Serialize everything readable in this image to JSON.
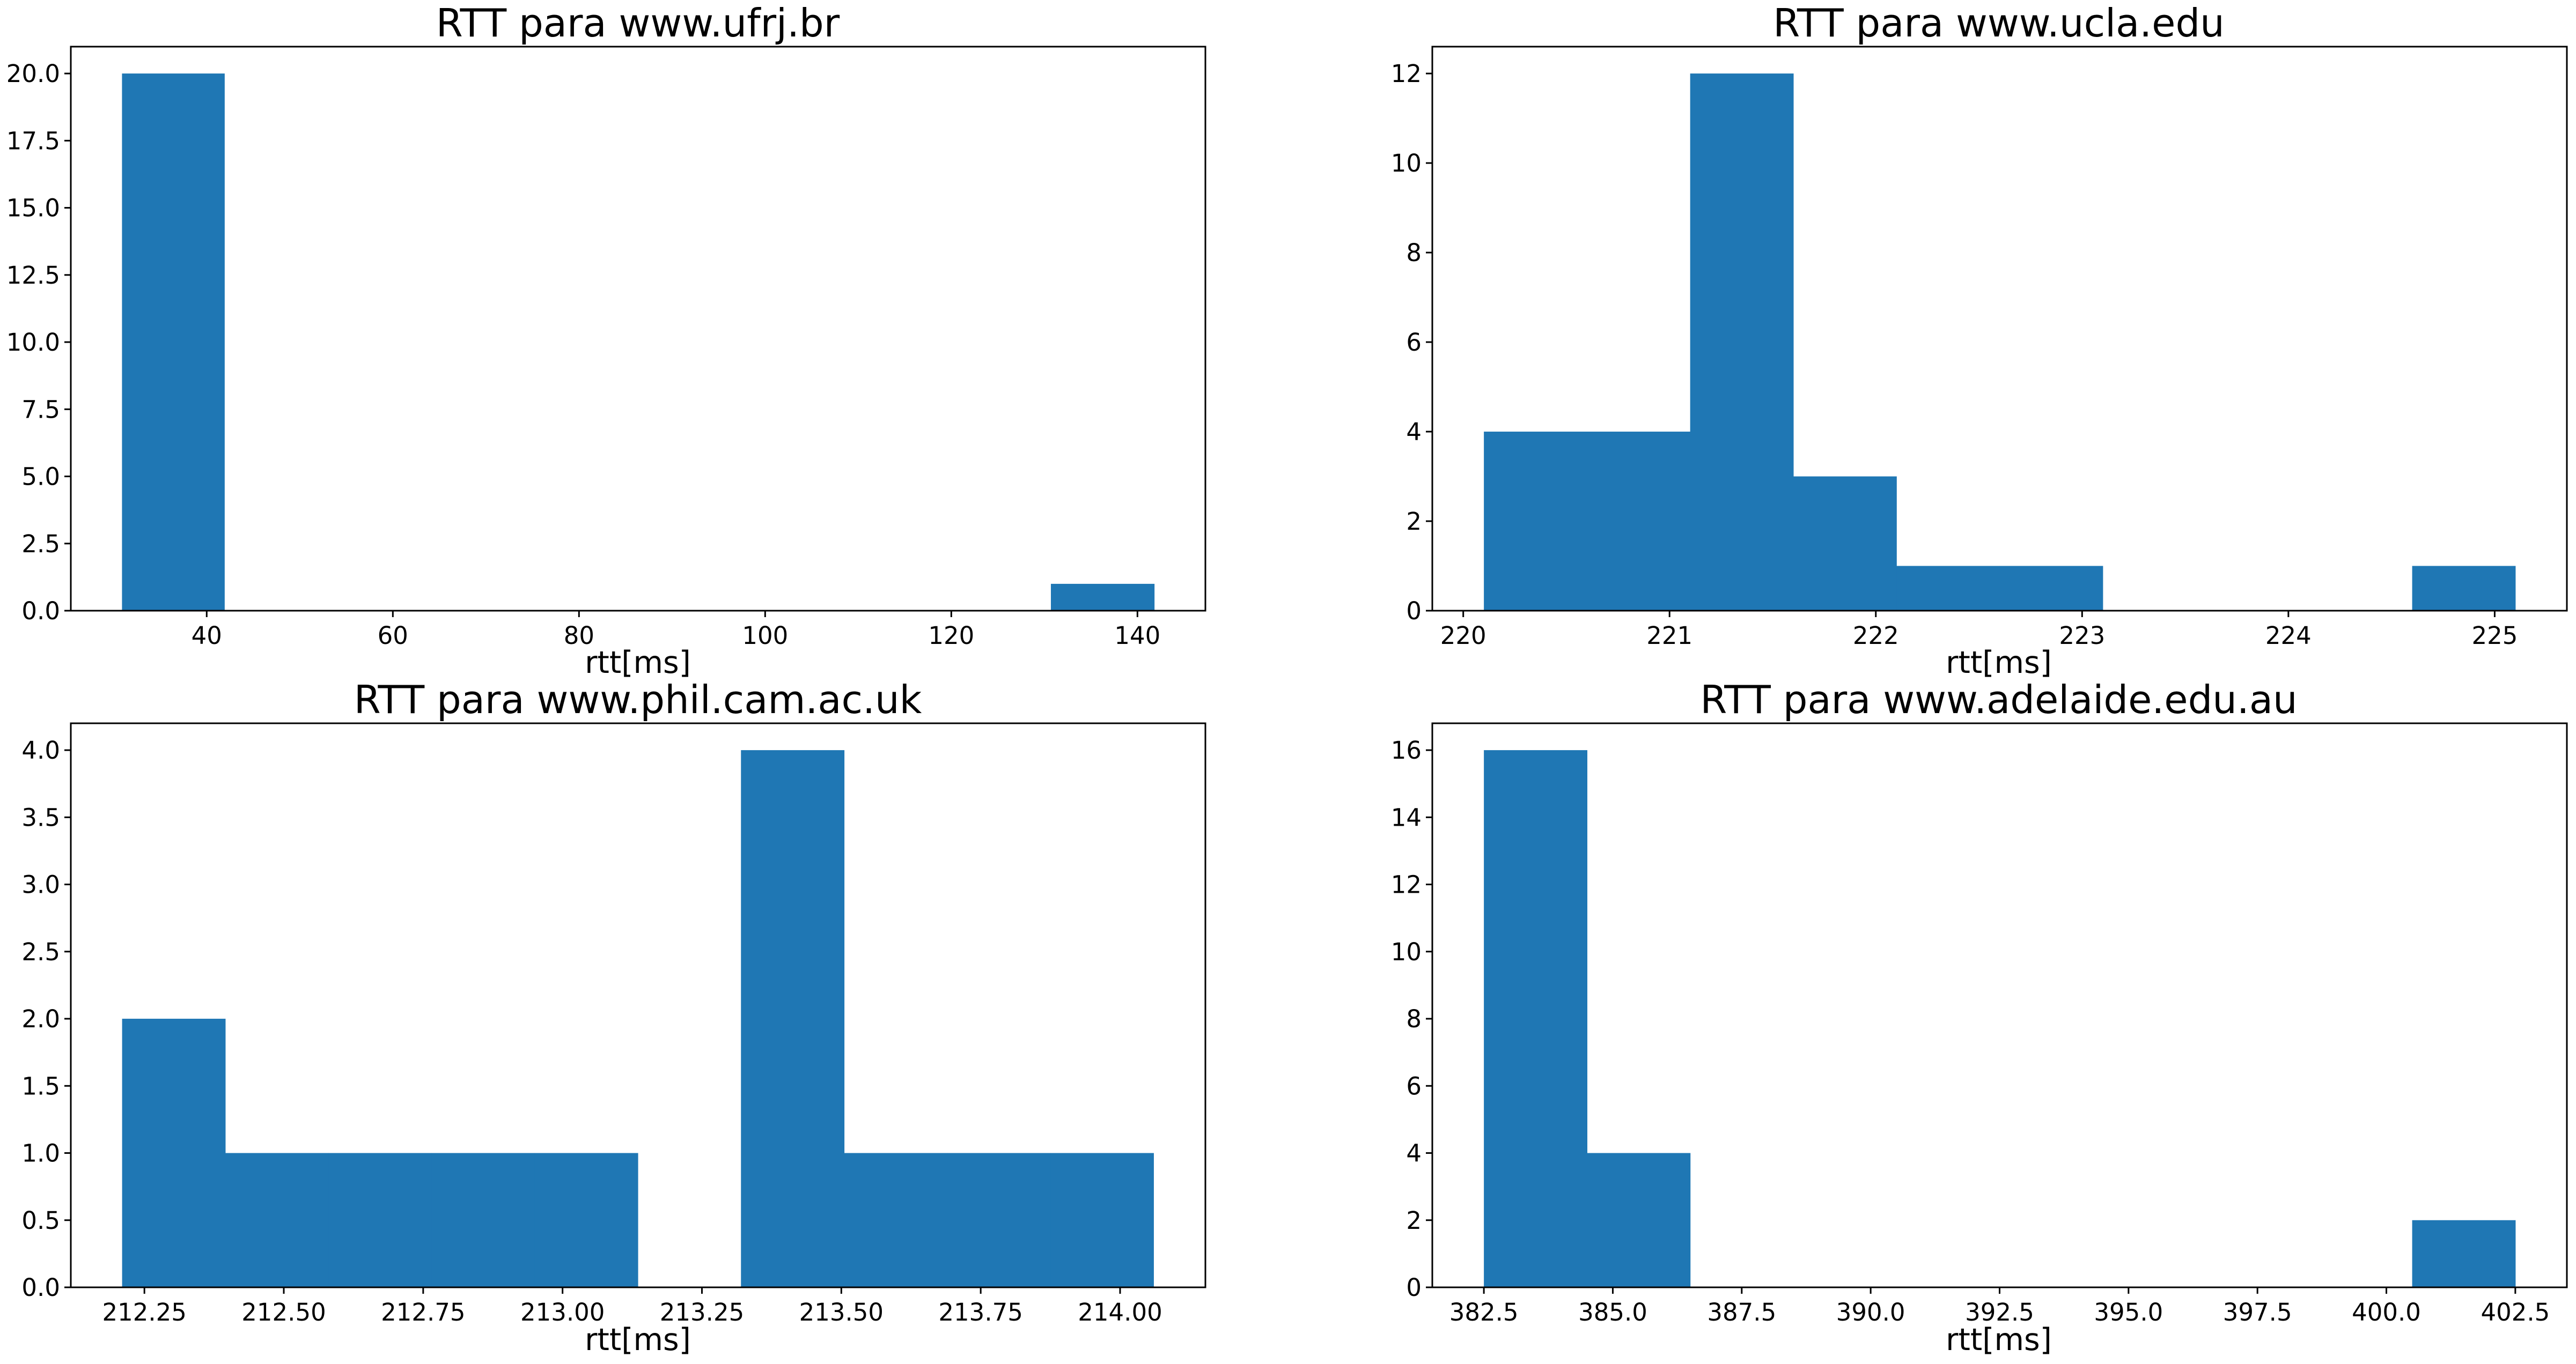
{
  "figure": {
    "bar_color": "#1f77b4",
    "background": "#ffffff"
  },
  "chart_data": [
    {
      "type": "bar",
      "title": "RTT para www.ufrj.br",
      "xlabel": "rtt[ms]",
      "ylabel": "",
      "grid": false,
      "xlim": [
        25.4,
        147.3
      ],
      "ylim": [
        0,
        21
      ],
      "xticks": [
        40,
        60,
        80,
        100,
        120,
        140
      ],
      "xtick_labels": [
        "40",
        "60",
        "80",
        "100",
        "120",
        "140"
      ],
      "yticks": [
        0,
        2.5,
        5,
        7.5,
        10,
        12.5,
        15,
        17.5,
        20
      ],
      "ytick_labels": [
        "0.0",
        "2.5",
        "5.0",
        "7.5",
        "10.0",
        "12.5",
        "15.0",
        "17.5",
        "20.0"
      ],
      "bins": [
        {
          "x0": 30.9,
          "x1": 41.9,
          "count": 20
        },
        {
          "x0": 41.9,
          "x1": 53.0,
          "count": 0
        },
        {
          "x0": 53.0,
          "x1": 64.1,
          "count": 0
        },
        {
          "x0": 64.1,
          "x1": 75.2,
          "count": 0
        },
        {
          "x0": 75.2,
          "x1": 86.3,
          "count": 0
        },
        {
          "x0": 86.3,
          "x1": 97.4,
          "count": 0
        },
        {
          "x0": 97.4,
          "x1": 108.5,
          "count": 0
        },
        {
          "x0": 108.5,
          "x1": 119.6,
          "count": 0
        },
        {
          "x0": 119.6,
          "x1": 130.7,
          "count": 0
        },
        {
          "x0": 130.7,
          "x1": 141.8,
          "count": 1
        }
      ]
    },
    {
      "type": "bar",
      "title": "RTT para www.ucla.edu",
      "xlabel": "rtt[ms]",
      "ylabel": "",
      "grid": false,
      "xlim": [
        219.85,
        225.35
      ],
      "ylim": [
        0,
        12.6
      ],
      "xticks": [
        220,
        221,
        222,
        223,
        224,
        225
      ],
      "xtick_labels": [
        "220",
        "221",
        "222",
        "223",
        "224",
        "225"
      ],
      "yticks": [
        0,
        2,
        4,
        6,
        8,
        10,
        12
      ],
      "ytick_labels": [
        "0",
        "2",
        "4",
        "6",
        "8",
        "10",
        "12"
      ],
      "bins": [
        {
          "x0": 220.1,
          "x1": 220.6,
          "count": 4
        },
        {
          "x0": 220.6,
          "x1": 221.1,
          "count": 4
        },
        {
          "x0": 221.1,
          "x1": 221.6,
          "count": 12
        },
        {
          "x0": 221.6,
          "x1": 222.1,
          "count": 3
        },
        {
          "x0": 222.1,
          "x1": 222.6,
          "count": 1
        },
        {
          "x0": 222.6,
          "x1": 223.1,
          "count": 1
        },
        {
          "x0": 223.1,
          "x1": 223.6,
          "count": 0
        },
        {
          "x0": 223.6,
          "x1": 224.1,
          "count": 0
        },
        {
          "x0": 224.1,
          "x1": 224.6,
          "count": 0
        },
        {
          "x0": 224.6,
          "x1": 225.1,
          "count": 1
        }
      ]
    },
    {
      "type": "bar",
      "title": "RTT para www.phil.cam.ac.uk",
      "xlabel": "rtt[ms]",
      "ylabel": "",
      "grid": false,
      "xlim": [
        212.118,
        214.153
      ],
      "ylim": [
        0,
        4.2
      ],
      "xticks": [
        212.25,
        212.5,
        212.75,
        213.0,
        213.25,
        213.5,
        213.75,
        214.0
      ],
      "xtick_labels": [
        "212.25",
        "212.50",
        "212.75",
        "213.00",
        "213.25",
        "213.50",
        "213.75",
        "214.00"
      ],
      "yticks": [
        0,
        0.5,
        1,
        1.5,
        2,
        2.5,
        3,
        3.5,
        4
      ],
      "ytick_labels": [
        "0.0",
        "0.5",
        "1.0",
        "1.5",
        "2.0",
        "2.5",
        "3.0",
        "3.5",
        "4.0"
      ],
      "bins": [
        {
          "x0": 212.21,
          "x1": 212.395,
          "count": 2
        },
        {
          "x0": 212.395,
          "x1": 212.58,
          "count": 1
        },
        {
          "x0": 212.58,
          "x1": 212.765,
          "count": 1
        },
        {
          "x0": 212.765,
          "x1": 212.95,
          "count": 1
        },
        {
          "x0": 212.95,
          "x1": 213.135,
          "count": 1
        },
        {
          "x0": 213.135,
          "x1": 213.32,
          "count": 0
        },
        {
          "x0": 213.32,
          "x1": 213.505,
          "count": 4
        },
        {
          "x0": 213.505,
          "x1": 213.69,
          "count": 1
        },
        {
          "x0": 213.69,
          "x1": 213.875,
          "count": 1
        },
        {
          "x0": 213.875,
          "x1": 214.06,
          "count": 1
        }
      ]
    },
    {
      "type": "bar",
      "title": "RTT para www.adelaide.edu.au",
      "xlabel": "rtt[ms]",
      "ylabel": "",
      "grid": false,
      "xlim": [
        381.5,
        403.5
      ],
      "ylim": [
        0,
        16.8
      ],
      "xticks": [
        382.5,
        385.0,
        387.5,
        390.0,
        392.5,
        395.0,
        397.5,
        400.0,
        402.5
      ],
      "xtick_labels": [
        "382.5",
        "385.0",
        "387.5",
        "390.0",
        "392.5",
        "395.0",
        "397.5",
        "400.0",
        "402.5"
      ],
      "yticks": [
        0,
        2,
        4,
        6,
        8,
        10,
        12,
        14,
        16
      ],
      "ytick_labels": [
        "0",
        "2",
        "4",
        "6",
        "8",
        "10",
        "12",
        "14",
        "16"
      ],
      "bins": [
        {
          "x0": 382.5,
          "x1": 384.5,
          "count": 16
        },
        {
          "x0": 384.5,
          "x1": 386.5,
          "count": 4
        },
        {
          "x0": 386.5,
          "x1": 388.5,
          "count": 0
        },
        {
          "x0": 388.5,
          "x1": 390.5,
          "count": 0
        },
        {
          "x0": 390.5,
          "x1": 392.5,
          "count": 0
        },
        {
          "x0": 392.5,
          "x1": 394.5,
          "count": 0
        },
        {
          "x0": 394.5,
          "x1": 396.5,
          "count": 0
        },
        {
          "x0": 396.5,
          "x1": 398.5,
          "count": 0
        },
        {
          "x0": 398.5,
          "x1": 400.5,
          "count": 0
        },
        {
          "x0": 400.5,
          "x1": 402.5,
          "count": 2
        }
      ]
    }
  ]
}
